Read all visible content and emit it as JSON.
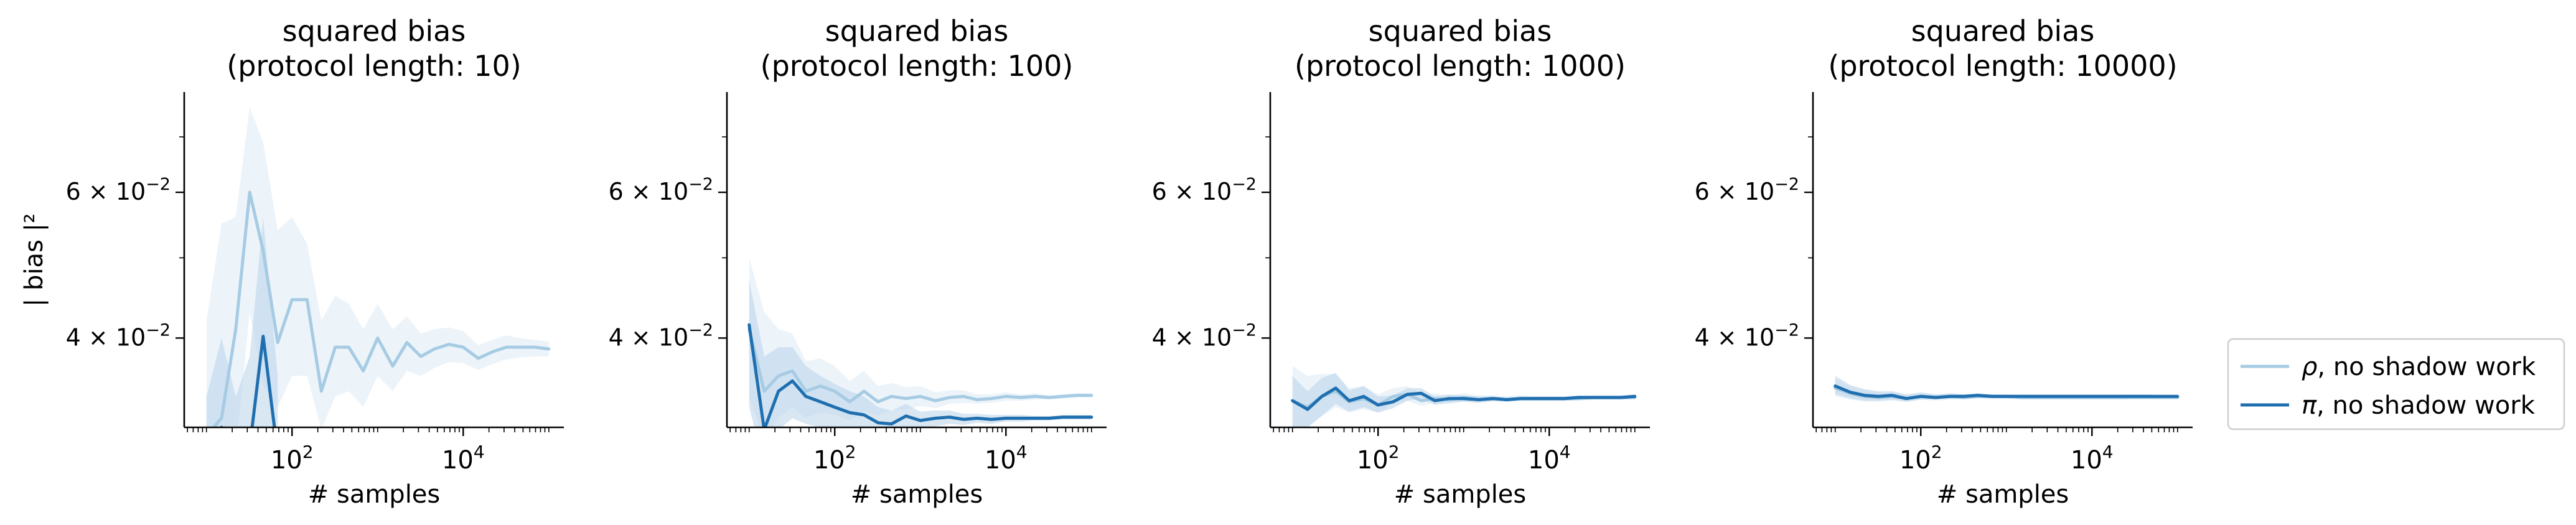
{
  "figure": {
    "legend_position": "right, lower",
    "colors": {
      "rho_line": "#a6cbe3",
      "pi_line": "#1f6fb0",
      "rho_band": "#e6f0f8",
      "pi_band": "#b9d4e9"
    }
  },
  "chart_data": [
    {
      "type": "line",
      "title": "squared bias\n(protocol length: 10)",
      "title_line1": "squared bias",
      "title_line2": "(protocol length: 10)",
      "xlabel": "# samples",
      "ylabel": "| bias |²",
      "xscale": "log",
      "yscale": "log",
      "xlim": [
        5.5,
        150000
      ],
      "ylim": [
        0.0312,
        0.0793
      ],
      "x_ticks": [
        {
          "value": 100,
          "base": "10",
          "exp": "2"
        },
        {
          "value": 10000,
          "base": "10",
          "exp": "4"
        }
      ],
      "y_ticks": [
        {
          "value": 0.04,
          "label": "4 × 10",
          "exp": "−2"
        },
        {
          "value": 0.06,
          "label": "6 × 10",
          "exp": "−2"
        }
      ],
      "series": [
        {
          "name": "ρ, no shadow work",
          "x": [
            10,
            15,
            22,
            32,
            46,
            68,
            100,
            150,
            220,
            320,
            460,
            680,
            1000,
            1500,
            2200,
            3200,
            4600,
            6800,
            10000,
            15000,
            22000,
            32000,
            46000,
            68000,
            100000
          ],
          "y": [
            0.0305,
            0.032,
            0.041,
            0.06,
            0.051,
            0.0395,
            0.0445,
            0.0445,
            0.0345,
            0.039,
            0.039,
            0.0365,
            0.04,
            0.037,
            0.0395,
            0.038,
            0.0388,
            0.0393,
            0.039,
            0.0378,
            0.0385,
            0.039,
            0.039,
            0.039,
            0.0388
          ],
          "band_low": [
            0.025,
            0.025,
            0.029,
            0.043,
            0.035,
            0.033,
            0.036,
            0.036,
            0.031,
            0.034,
            0.0345,
            0.033,
            0.036,
            0.0345,
            0.0365,
            0.036,
            0.0368,
            0.0374,
            0.0373,
            0.0366,
            0.0372,
            0.0377,
            0.0379,
            0.038,
            0.038
          ],
          "band_high": [
            0.042,
            0.055,
            0.056,
            0.076,
            0.069,
            0.054,
            0.056,
            0.052,
            0.042,
            0.045,
            0.044,
            0.041,
            0.044,
            0.041,
            0.0425,
            0.0405,
            0.041,
            0.0412,
            0.0408,
            0.0392,
            0.0398,
            0.0403,
            0.04,
            0.0398,
            0.0396
          ]
        },
        {
          "name": "π, no shadow work",
          "x": [
            10,
            15,
            22,
            32,
            46,
            68
          ],
          "y": [
            0.028,
            0.0312,
            0.028,
            0.0295,
            0.0402,
            0.029
          ],
          "band_low": [
            0.024,
            0.025,
            0.024,
            0.025,
            0.03,
            0.024
          ],
          "band_high": [
            0.034,
            0.04,
            0.034,
            0.038,
            0.056,
            0.036
          ]
        }
      ]
    },
    {
      "type": "line",
      "title": "squared bias\n(protocol length: 100)",
      "title_line1": "squared bias",
      "title_line2": "(protocol length: 100)",
      "xlabel": "# samples",
      "xscale": "log",
      "yscale": "log",
      "xlim": [
        5.5,
        150000
      ],
      "ylim": [
        0.0312,
        0.0793
      ],
      "x_ticks": [
        {
          "value": 100,
          "base": "10",
          "exp": "2"
        },
        {
          "value": 10000,
          "base": "10",
          "exp": "4"
        }
      ],
      "y_ticks": [
        {
          "value": 0.04,
          "label": "4 × 10",
          "exp": "−2"
        },
        {
          "value": 0.06,
          "label": "6 × 10",
          "exp": "−2"
        }
      ],
      "series": [
        {
          "name": "ρ, no shadow work",
          "x": [
            10,
            15,
            22,
            32,
            46,
            68,
            100,
            150,
            220,
            320,
            460,
            680,
            1000,
            1500,
            2200,
            3200,
            4600,
            6800,
            10000,
            15000,
            22000,
            32000,
            46000,
            68000,
            100000
          ],
          "y": [
            0.041,
            0.0345,
            0.036,
            0.0365,
            0.0345,
            0.035,
            0.0345,
            0.0335,
            0.0345,
            0.0335,
            0.034,
            0.0338,
            0.034,
            0.0336,
            0.0339,
            0.034,
            0.0337,
            0.0338,
            0.034,
            0.0339,
            0.034,
            0.0339,
            0.034,
            0.0341,
            0.0341
          ],
          "band_low": [
            0.034,
            0.03,
            0.032,
            0.033,
            0.032,
            0.0325,
            0.0323,
            0.0318,
            0.0326,
            0.0322,
            0.0328,
            0.0328,
            0.0331,
            0.0329,
            0.0333,
            0.0334,
            0.0333,
            0.0334,
            0.0336,
            0.0336,
            0.0337,
            0.0337,
            0.0338,
            0.0339,
            0.0339
          ],
          "band_high": [
            0.05,
            0.043,
            0.041,
            0.0405,
            0.0375,
            0.0378,
            0.037,
            0.0355,
            0.0365,
            0.035,
            0.0353,
            0.0349,
            0.035,
            0.0344,
            0.0346,
            0.0346,
            0.0342,
            0.0342,
            0.0344,
            0.0342,
            0.0343,
            0.0341,
            0.0342,
            0.0343,
            0.0343
          ]
        },
        {
          "name": "π, no shadow work",
          "x": [
            10,
            15,
            22,
            32,
            46,
            68,
            100,
            150,
            220,
            320,
            460,
            680,
            1000,
            1500,
            2200,
            3200,
            4600,
            6800,
            10000,
            15000,
            22000,
            32000,
            46000,
            68000,
            100000
          ],
          "y": [
            0.0415,
            0.031,
            0.0345,
            0.0355,
            0.034,
            0.0335,
            0.033,
            0.0325,
            0.0323,
            0.0316,
            0.0315,
            0.0322,
            0.0318,
            0.032,
            0.0321,
            0.0319,
            0.032,
            0.0319,
            0.032,
            0.032,
            0.032,
            0.032,
            0.0321,
            0.0321,
            0.0321
          ],
          "band_low": [
            0.033,
            0.028,
            0.031,
            0.032,
            0.0315,
            0.0312,
            0.031,
            0.0308,
            0.0308,
            0.0305,
            0.0306,
            0.0312,
            0.0311,
            0.0313,
            0.0315,
            0.0314,
            0.0316,
            0.0315,
            0.0317,
            0.0317,
            0.0318,
            0.0318,
            0.0319,
            0.0319,
            0.0319
          ],
          "band_high": [
            0.047,
            0.038,
            0.039,
            0.039,
            0.037,
            0.036,
            0.0352,
            0.0345,
            0.034,
            0.033,
            0.0327,
            0.0333,
            0.0326,
            0.0327,
            0.0327,
            0.0324,
            0.0324,
            0.0323,
            0.0323,
            0.0323,
            0.0322,
            0.0322,
            0.0323,
            0.0323,
            0.0323
          ]
        }
      ]
    },
    {
      "type": "line",
      "title": "squared bias\n(protocol length: 1000)",
      "title_line1": "squared bias",
      "title_line2": "(protocol length: 1000)",
      "xlabel": "# samples",
      "xscale": "log",
      "yscale": "log",
      "xlim": [
        5.5,
        150000
      ],
      "ylim": [
        0.0312,
        0.0793
      ],
      "x_ticks": [
        {
          "value": 100,
          "base": "10",
          "exp": "2"
        },
        {
          "value": 10000,
          "base": "10",
          "exp": "4"
        }
      ],
      "y_ticks": [
        {
          "value": 0.04,
          "label": "4 × 10",
          "exp": "−2"
        },
        {
          "value": 0.06,
          "label": "6 × 10",
          "exp": "−2"
        }
      ],
      "series": [
        {
          "name": "ρ, no shadow work",
          "x": [
            10,
            15,
            22,
            32,
            46,
            68,
            100,
            150,
            220,
            320,
            460,
            680,
            1000,
            1500,
            2200,
            3200,
            4600,
            6800,
            10000,
            15000,
            22000,
            32000,
            46000,
            68000,
            100000
          ],
          "y": [
            0.0336,
            0.033,
            0.034,
            0.0345,
            0.0335,
            0.0338,
            0.0332,
            0.034,
            0.0342,
            0.0336,
            0.0338,
            0.0337,
            0.0339,
            0.0337,
            0.0338,
            0.0337,
            0.0338,
            0.0338,
            0.0338,
            0.0338,
            0.0338,
            0.0339,
            0.0339,
            0.0339,
            0.0339
          ],
          "band_low": [
            0.031,
            0.0312,
            0.0322,
            0.033,
            0.0325,
            0.0328,
            0.0325,
            0.0333,
            0.0336,
            0.0331,
            0.0334,
            0.0333,
            0.0335,
            0.0334,
            0.0335,
            0.0335,
            0.0336,
            0.0336,
            0.0336,
            0.0336,
            0.0336,
            0.0337,
            0.0337,
            0.0337,
            0.0337
          ],
          "band_high": [
            0.037,
            0.036,
            0.0362,
            0.0362,
            0.0348,
            0.035,
            0.0342,
            0.0348,
            0.035,
            0.0342,
            0.0343,
            0.0341,
            0.0343,
            0.0341,
            0.0341,
            0.034,
            0.0341,
            0.034,
            0.034,
            0.034,
            0.034,
            0.0341,
            0.0341,
            0.0341,
            0.0341
          ]
        },
        {
          "name": "π, no shadow work",
          "x": [
            10,
            15,
            22,
            32,
            46,
            68,
            100,
            150,
            220,
            320,
            460,
            680,
            1000,
            1500,
            2200,
            3200,
            4600,
            6800,
            10000,
            15000,
            22000,
            32000,
            46000,
            68000,
            100000
          ],
          "y": [
            0.0336,
            0.0328,
            0.034,
            0.0348,
            0.0336,
            0.034,
            0.0332,
            0.0335,
            0.0342,
            0.0343,
            0.0336,
            0.0338,
            0.0338,
            0.0337,
            0.0338,
            0.0337,
            0.0338,
            0.0338,
            0.0338,
            0.0338,
            0.0339,
            0.0339,
            0.0339,
            0.0339,
            0.034
          ],
          "band_low": [
            0.0312,
            0.0312,
            0.0322,
            0.0333,
            0.0326,
            0.033,
            0.0325,
            0.0329,
            0.0336,
            0.0338,
            0.0332,
            0.0334,
            0.0335,
            0.0334,
            0.0336,
            0.0335,
            0.0336,
            0.0336,
            0.0336,
            0.0336,
            0.0337,
            0.0337,
            0.0337,
            0.0337,
            0.0338
          ],
          "band_high": [
            0.036,
            0.0345,
            0.0358,
            0.0363,
            0.0346,
            0.035,
            0.034,
            0.0341,
            0.0348,
            0.0348,
            0.034,
            0.0342,
            0.0341,
            0.034,
            0.034,
            0.0339,
            0.034,
            0.034,
            0.034,
            0.034,
            0.0341,
            0.0341,
            0.0341,
            0.0341,
            0.0342
          ]
        }
      ]
    },
    {
      "type": "line",
      "title": "squared bias\n(protocol length: 10000)",
      "title_line1": "squared bias",
      "title_line2": "(protocol length: 10000)",
      "xlabel": "# samples",
      "xscale": "log",
      "yscale": "log",
      "xlim": [
        5.5,
        150000
      ],
      "ylim": [
        0.0312,
        0.0793
      ],
      "x_ticks": [
        {
          "value": 100,
          "base": "10",
          "exp": "2"
        },
        {
          "value": 10000,
          "base": "10",
          "exp": "4"
        }
      ],
      "y_ticks": [
        {
          "value": 0.04,
          "label": "4 × 10",
          "exp": "−2"
        },
        {
          "value": 0.06,
          "label": "6 × 10",
          "exp": "−2"
        }
      ],
      "series": [
        {
          "name": "ρ, no shadow work",
          "x": [
            10,
            15,
            22,
            32,
            46,
            68,
            100,
            150,
            220,
            320,
            460,
            680,
            1000,
            1500,
            2200,
            3200,
            4600,
            6800,
            10000,
            15000,
            22000,
            32000,
            46000,
            68000,
            100000
          ],
          "y": [
            0.0348,
            0.0343,
            0.034,
            0.0339,
            0.034,
            0.0338,
            0.034,
            0.0339,
            0.034,
            0.0339,
            0.034,
            0.034,
            0.034,
            0.0339,
            0.0339,
            0.0339,
            0.0339,
            0.0339,
            0.0339,
            0.0339,
            0.0339,
            0.0339,
            0.0339,
            0.0339,
            0.0339
          ],
          "band_low": [
            0.034,
            0.0337,
            0.0335,
            0.0335,
            0.0336,
            0.0335,
            0.0337,
            0.0336,
            0.0337,
            0.0337,
            0.0338,
            0.0338,
            0.0338,
            0.0337,
            0.0337,
            0.0337,
            0.0337,
            0.0337,
            0.0337,
            0.0337,
            0.0337,
            0.0338,
            0.0338,
            0.0338,
            0.0338
          ],
          "band_high": [
            0.0357,
            0.035,
            0.0346,
            0.0344,
            0.0344,
            0.0342,
            0.0343,
            0.0342,
            0.0343,
            0.0342,
            0.0342,
            0.0342,
            0.0342,
            0.0341,
            0.0341,
            0.0341,
            0.0341,
            0.0341,
            0.0341,
            0.0341,
            0.0341,
            0.034,
            0.034,
            0.034,
            0.034
          ]
        },
        {
          "name": "π, no shadow work",
          "x": [
            10,
            15,
            22,
            32,
            46,
            68,
            100,
            150,
            220,
            320,
            460,
            680,
            1000,
            1500,
            2200,
            3200,
            4600,
            6800,
            10000,
            15000,
            22000,
            32000,
            46000,
            68000,
            100000
          ],
          "y": [
            0.035,
            0.0344,
            0.0341,
            0.034,
            0.0341,
            0.0338,
            0.034,
            0.0339,
            0.034,
            0.034,
            0.0341,
            0.034,
            0.034,
            0.034,
            0.034,
            0.034,
            0.034,
            0.034,
            0.034,
            0.034,
            0.034,
            0.034,
            0.034,
            0.034,
            0.034
          ],
          "band_low": [
            0.0342,
            0.0338,
            0.0336,
            0.0336,
            0.0337,
            0.0335,
            0.0337,
            0.0337,
            0.0338,
            0.0338,
            0.0339,
            0.0338,
            0.0338,
            0.0338,
            0.0338,
            0.0338,
            0.0338,
            0.0338,
            0.0338,
            0.0338,
            0.0338,
            0.0338,
            0.0338,
            0.0339,
            0.0339
          ],
          "band_high": [
            0.036,
            0.0351,
            0.0347,
            0.0345,
            0.0345,
            0.0342,
            0.0344,
            0.0342,
            0.0343,
            0.0342,
            0.0343,
            0.0342,
            0.0342,
            0.0342,
            0.0342,
            0.0342,
            0.0342,
            0.0342,
            0.0342,
            0.0342,
            0.0342,
            0.0342,
            0.0342,
            0.0341,
            0.0341
          ]
        }
      ]
    }
  ]
}
